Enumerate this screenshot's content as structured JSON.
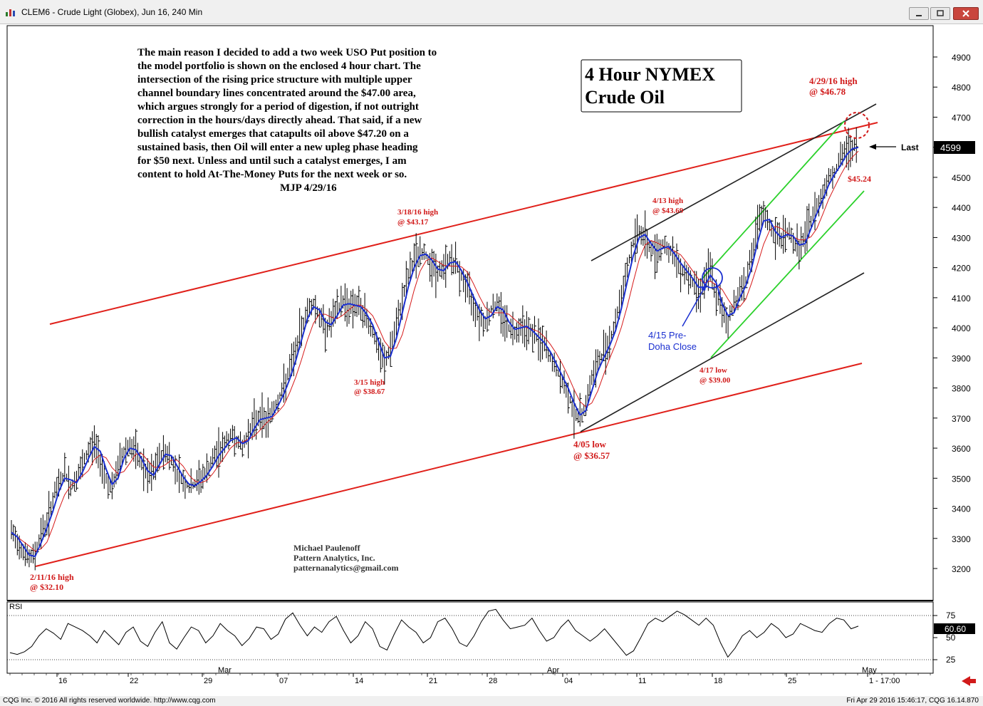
{
  "window": {
    "title": "CLEM6 - Crude Light (Globex), Jun 16, 240 Min"
  },
  "statusbar": {
    "left": "CQG Inc. © 2016 All rights reserved worldwide. http://www.cqg.com",
    "right": "Fri Apr 29 2016 15:46:17, CQG 16.14.870"
  },
  "commentary": {
    "lines": [
      "The main reason I decided to add a two week USO Put position to",
      "the model portfolio is shown on the enclosed 4 hour chart. The",
      "intersection of the rising price structure with multiple upper",
      "channel boundary lines concentrated around the $47.00 area,",
      "which argues strongly for a period of digestion, if not outright",
      "correction in the hours/days directly ahead. That said, if a new",
      "bullish catalyst emerges that catapults oil above $47.20 on a",
      "sustained basis, then Oil will enter a new upleg phase heading",
      "for $50 next. Unless and until such a catalyst emerges, I am",
      "content to hold At-The-Money Puts for the next week or so."
    ],
    "signature": "MJP 4/29/16"
  },
  "title_box": {
    "line1": "4 Hour NYMEX",
    "line2": "Crude Oil"
  },
  "author": {
    "name": "Michael Paulenoff",
    "company": "Pattern Analytics, Inc.",
    "email": "patternanalytics@gmail.com"
  },
  "annotations": [
    {
      "id": "feb11",
      "line1": "2/11/16 high",
      "line2": "@ $32.10"
    },
    {
      "id": "mar15",
      "line1": "3/15 high",
      "line2": "@ $38.67"
    },
    {
      "id": "mar18",
      "line1": "3/18/16 high",
      "line2": "@ $43.17"
    },
    {
      "id": "apr05",
      "line1": "4/05 low",
      "line2": "@ $36.57"
    },
    {
      "id": "apr13",
      "line1": "4/13 high",
      "line2": "@ $43.69"
    },
    {
      "id": "apr15",
      "line1": "4/15 Pre-",
      "line2": "Doha Close"
    },
    {
      "id": "apr17",
      "line1": "4/17 low",
      "line2": "@ $39.00"
    },
    {
      "id": "apr29",
      "line1": "4/29/16 high",
      "line2": "@ $46.78"
    },
    {
      "id": "last_low",
      "line1": "$45.24",
      "line2": ""
    }
  ],
  "last_label": "Last",
  "colors": {
    "channel_red": "#e0201a",
    "channel_black": "#222222",
    "channel_green": "#2bd12b",
    "ma_blue": "#1a2fd0",
    "ma_red": "#d61a1a",
    "annotation_red": "#d11a1a",
    "annotation_blue": "#1a2fd0",
    "bars": "#000000"
  },
  "chart_data": {
    "type": "line",
    "title": "CLEM6 - Crude Light (Globex), Jun 16, 240 Min",
    "y_axis": {
      "ticks": [
        3200,
        3300,
        3400,
        3500,
        3600,
        3700,
        3800,
        3900,
        4000,
        4100,
        4200,
        4300,
        4400,
        4500,
        4600,
        4700,
        4800,
        4900
      ],
      "range": [
        3120,
        4950
      ],
      "last_value": "4599"
    },
    "x_axis": {
      "day_ticks": [
        "16",
        "22",
        "29",
        "07",
        "14",
        "21",
        "28",
        "04",
        "11",
        "18",
        "25",
        "1 - 17:00"
      ],
      "month_labels": [
        "Mar",
        "Apr",
        "May"
      ]
    },
    "rsi": {
      "label": "RSI",
      "ticks": [
        25,
        50,
        75
      ],
      "last_value": "60.60",
      "levels": [
        25,
        75
      ],
      "values": [
        33,
        31,
        34,
        40,
        52,
        60,
        55,
        48,
        66,
        62,
        58,
        52,
        44,
        58,
        50,
        42,
        56,
        62,
        46,
        40,
        56,
        68,
        44,
        37,
        50,
        62,
        58,
        44,
        52,
        66,
        58,
        52,
        41,
        49,
        62,
        60,
        48,
        54,
        71,
        78,
        64,
        52,
        62,
        56,
        68,
        74,
        58,
        44,
        52,
        68,
        60,
        40,
        36,
        54,
        70,
        62,
        56,
        44,
        50,
        68,
        72,
        60,
        44,
        40,
        52,
        68,
        80,
        82,
        70,
        60,
        62,
        64,
        72,
        58,
        46,
        50,
        62,
        70,
        58,
        52,
        46,
        52,
        60,
        50,
        40,
        30,
        35,
        50,
        66,
        72,
        68,
        74,
        80,
        76,
        70,
        64,
        72,
        64,
        44,
        28,
        38,
        52,
        58,
        50,
        56,
        66,
        60,
        50,
        54,
        66,
        62,
        58,
        56,
        66,
        72,
        70,
        60,
        63
      ]
    },
    "price": {
      "unit": "cents (price x100)",
      "closes": [
        3320,
        3290,
        3260,
        3230,
        3250,
        3320,
        3350,
        3430,
        3480,
        3520,
        3470,
        3500,
        3540,
        3590,
        3620,
        3560,
        3500,
        3460,
        3540,
        3590,
        3610,
        3580,
        3550,
        3500,
        3520,
        3570,
        3590,
        3560,
        3520,
        3490,
        3470,
        3480,
        3500,
        3520,
        3560,
        3590,
        3610,
        3640,
        3630,
        3600,
        3650,
        3680,
        3710,
        3690,
        3720,
        3760,
        3800,
        3860,
        3920,
        4000,
        4060,
        4080,
        4040,
        4000,
        4020,
        4060,
        4090,
        4070,
        4080,
        4060,
        4030,
        3990,
        3920,
        3880,
        3930,
        4000,
        4100,
        4170,
        4230,
        4250,
        4240,
        4210,
        4180,
        4200,
        4230,
        4210,
        4170,
        4130,
        4080,
        4040,
        4020,
        4060,
        4080,
        4040,
        4000,
        3990,
        4010,
        4000,
        3980,
        3960,
        3940,
        3900,
        3860,
        3820,
        3780,
        3720,
        3700,
        3750,
        3830,
        3880,
        3920,
        3960,
        4020,
        4110,
        4200,
        4280,
        4320,
        4300,
        4260,
        4250,
        4280,
        4260,
        4230,
        4200,
        4180,
        4150,
        4120,
        4150,
        4200,
        4100,
        4060,
        4020,
        4080,
        4120,
        4160,
        4240,
        4330,
        4380,
        4340,
        4300,
        4300,
        4320,
        4290,
        4260,
        4300,
        4360,
        4400,
        4450,
        4500,
        4520,
        4560,
        4590,
        4600,
        4599
      ],
      "moving_averages": [
        "fast (blue)",
        "slow (red)"
      ]
    },
    "trendlines": [
      {
        "name": "red lower channel",
        "from": [
          "Feb 11",
          3210
        ],
        "to": [
          "May 2",
          3880
        ]
      },
      {
        "name": "red upper channel",
        "from": [
          "Feb 9",
          4010
        ],
        "to": [
          "May 2",
          4680
        ]
      },
      {
        "name": "black lower line",
        "from": [
          "Apr 5",
          3650
        ],
        "to": [
          "May 2",
          4180
        ]
      },
      {
        "name": "black upper line",
        "from": [
          "Apr 5",
          4220
        ],
        "to": [
          "May 2",
          4740
        ]
      },
      {
        "name": "green lower line",
        "from": [
          "Apr 17",
          3900
        ],
        "to": [
          "May 2",
          4460
        ]
      },
      {
        "name": "green upper line",
        "from": [
          "Apr 15",
          4150
        ],
        "to": [
          "Apr 29",
          4700
        ]
      }
    ],
    "grid": false,
    "legend": "none"
  }
}
